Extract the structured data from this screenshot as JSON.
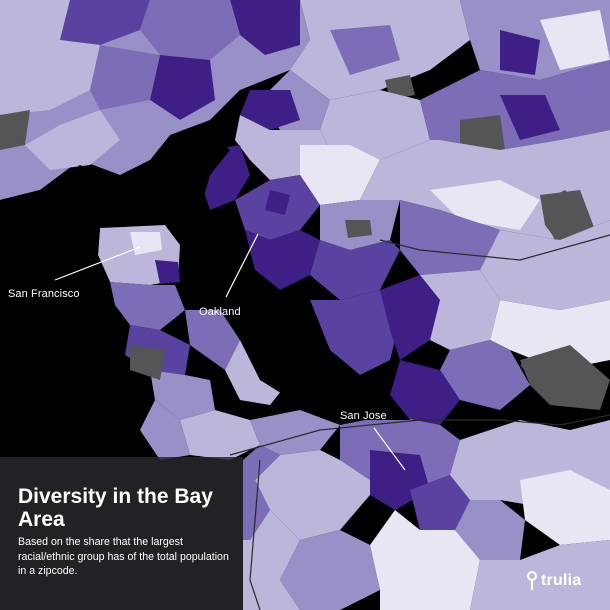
{
  "map": {
    "region": "Bay Area",
    "shading": "purple-scale choropleth by zipcode",
    "colors": {
      "water": "#000000",
      "low": "#e8e6f2",
      "light": "#bcb6da",
      "mid_light": "#9a90c8",
      "mid": "#7c6db6",
      "mid_dark": "#5a43a0",
      "dark": "#3e1f86",
      "no_data": "#555555"
    },
    "labels": [
      {
        "id": "sf",
        "text": "San Francisco"
      },
      {
        "id": "oak",
        "text": "Oakland"
      },
      {
        "id": "sj",
        "text": "San Jose"
      }
    ]
  },
  "info": {
    "title": "Diversity in the Bay Area",
    "subtitle": "Based on the share that the largest racial/ethnic group has of the total population in a zipcode."
  },
  "brand": {
    "name": "trulia",
    "icon": "map-pin-icon"
  }
}
